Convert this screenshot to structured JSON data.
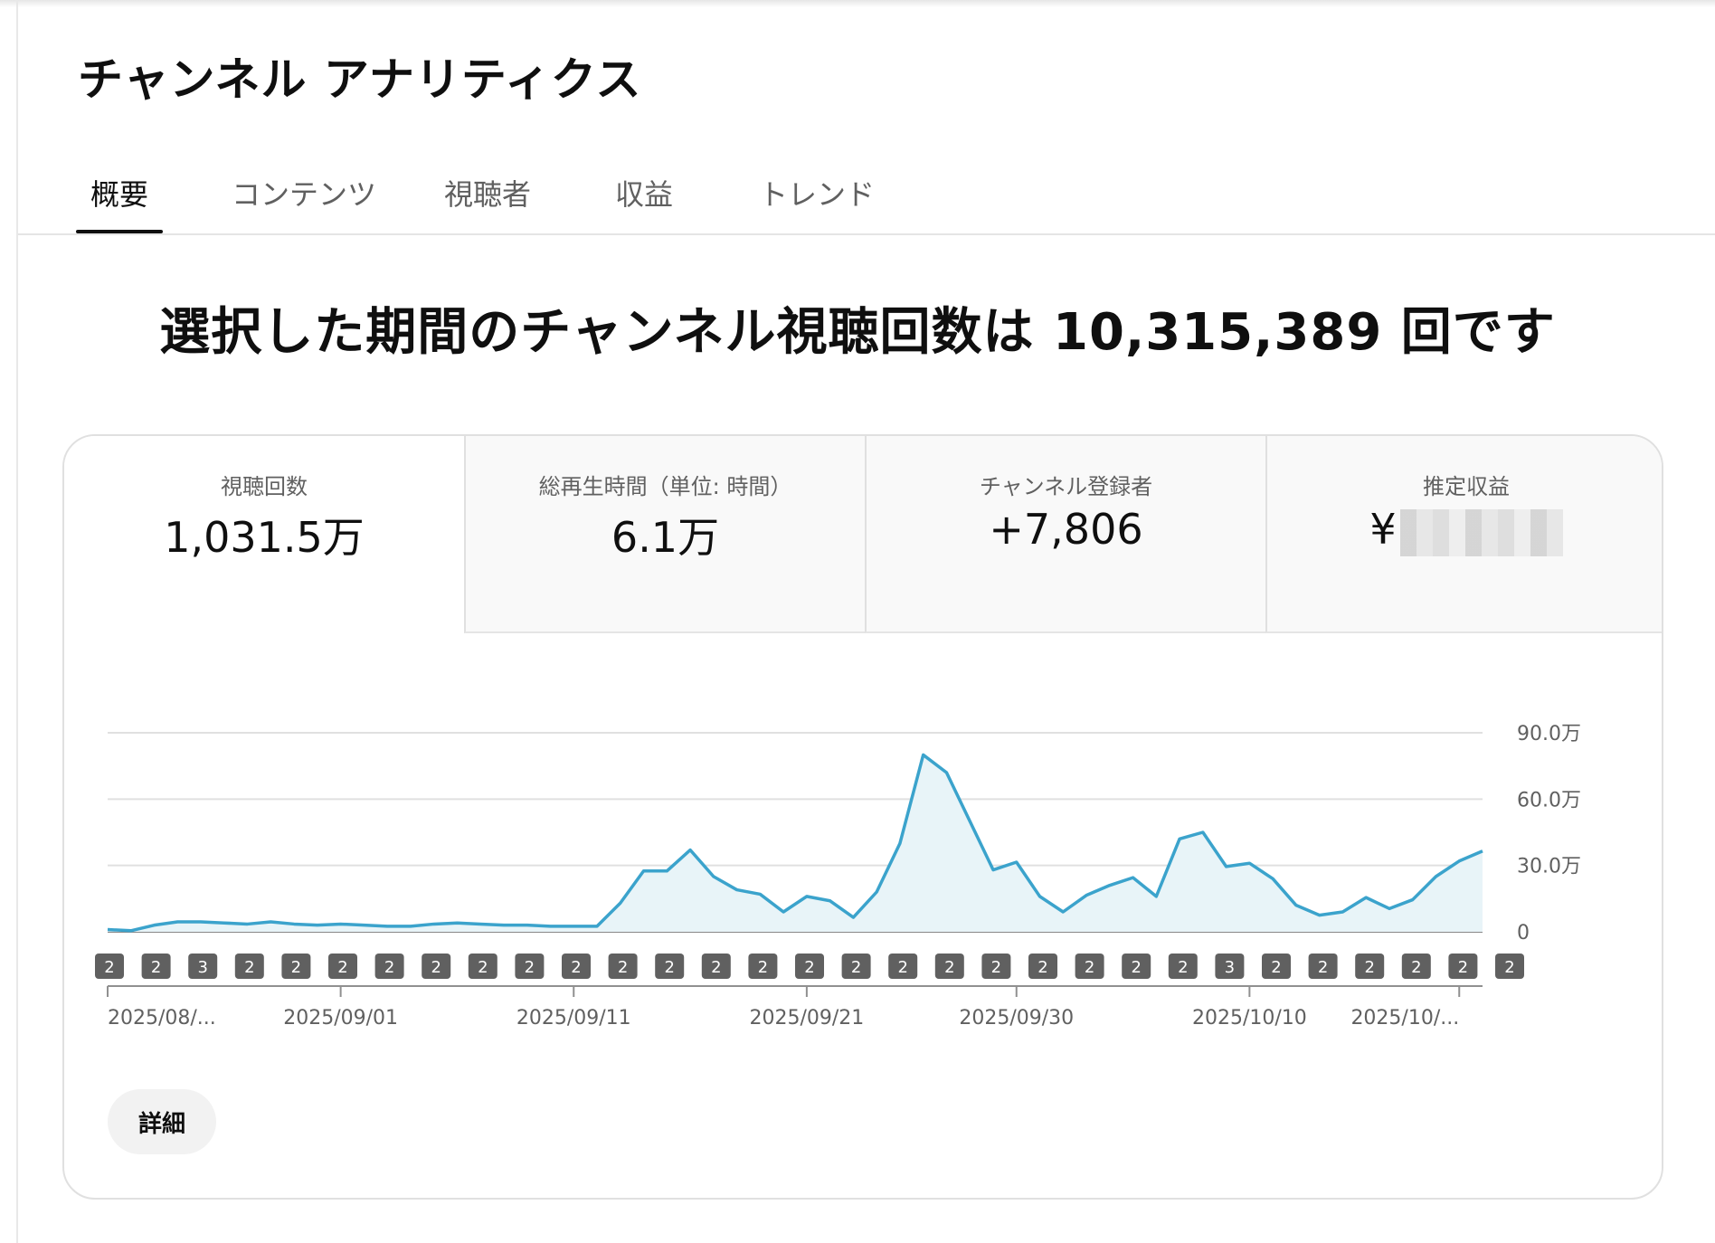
{
  "header": {
    "title": "チャンネル アナリティクス"
  },
  "tabs": [
    {
      "label": "概要",
      "active": true
    },
    {
      "label": "コンテンツ",
      "active": false
    },
    {
      "label": "視聴者",
      "active": false
    },
    {
      "label": "収益",
      "active": false
    },
    {
      "label": "トレンド",
      "active": false
    }
  ],
  "headline": "選択した期間のチャンネル視聴回数は 10,315,389 回です",
  "metrics": [
    {
      "label": "視聴回数",
      "value": "1,031.5万",
      "active": true
    },
    {
      "label": "総再生時間（単位: 時間）",
      "value": "6.1万",
      "active": false
    },
    {
      "label": "チャンネル登録者",
      "value": "+7,806",
      "active": false
    },
    {
      "label": "推定収益",
      "value": "¥",
      "active": false
    }
  ],
  "details_button": "詳細",
  "colors": {
    "line": "#3ba3cc",
    "fill": "#e8f4f8",
    "marker": "#606060"
  },
  "chart_data": {
    "type": "area",
    "y_ticks": [
      "90.0万",
      "60.0万",
      "30.0万",
      "0"
    ],
    "ylim": [
      0,
      900000
    ],
    "x_tick_labels": [
      "2025/08/...",
      "2025/09/01",
      "2025/09/11",
      "2025/09/21",
      "2025/09/30",
      "2025/10/10",
      "2025/10/..."
    ],
    "x_tick_indices": [
      0,
      10,
      20,
      30,
      39,
      49,
      58
    ],
    "grid": true,
    "series": [
      {
        "values": [
          10000,
          5000,
          30000,
          45000,
          45000,
          40000,
          35000,
          45000,
          35000,
          30000,
          35000,
          30000,
          25000,
          25000,
          35000,
          40000,
          35000,
          30000,
          30000,
          25000,
          25000,
          25000,
          130000,
          275000,
          275000,
          370000,
          250000,
          190000,
          170000,
          90000,
          160000,
          140000,
          65000,
          180000,
          400000,
          800000,
          720000,
          500000,
          280000,
          315000,
          160000,
          90000,
          165000,
          210000,
          245000,
          160000,
          420000,
          450000,
          295000,
          310000,
          240000,
          120000,
          75000,
          90000,
          155000,
          105000,
          145000,
          250000,
          320000,
          365000
        ]
      }
    ],
    "markers": [
      "2",
      "2",
      "3",
      "2",
      "2",
      "2",
      "2",
      "2",
      "2",
      "2",
      "2",
      "2",
      "2",
      "2",
      "2",
      "2",
      "2",
      "2",
      "2",
      "2",
      "2",
      "2",
      "2",
      "2",
      "3",
      "2",
      "2",
      "2",
      "2",
      "2",
      "2"
    ]
  }
}
